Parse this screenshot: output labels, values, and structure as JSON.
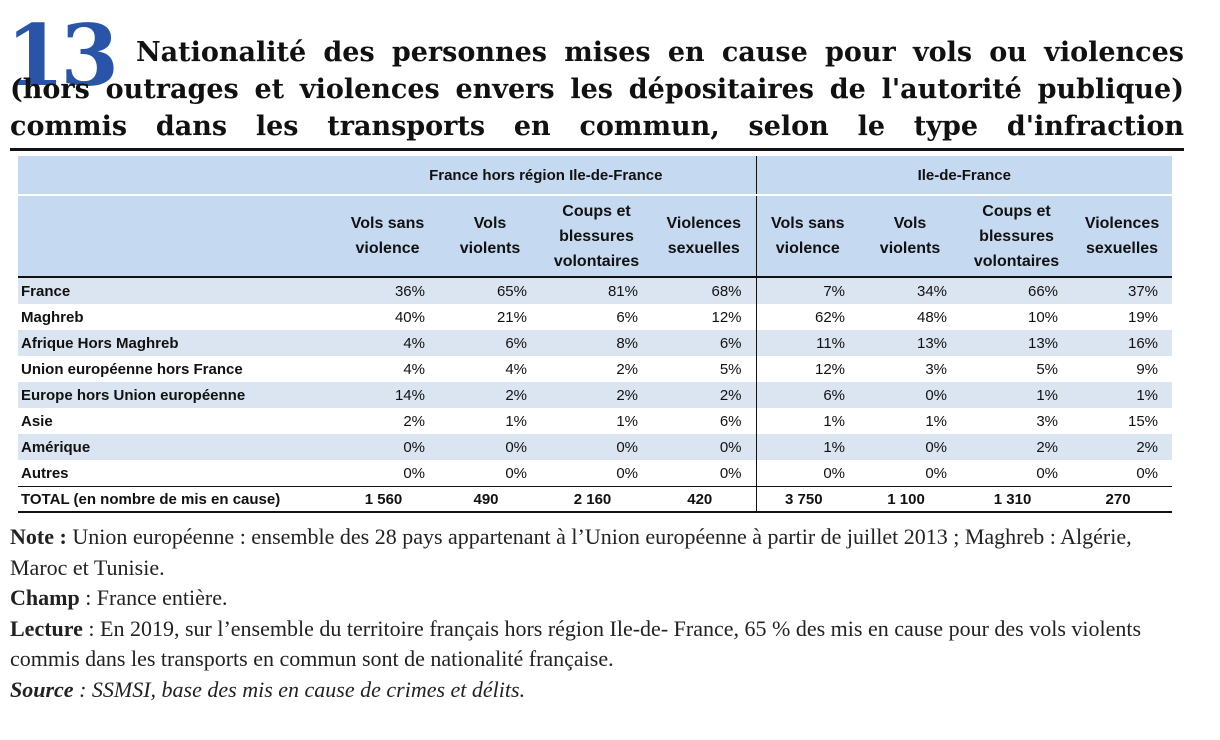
{
  "figure": {
    "number": "13",
    "title": "Nationalité des personnes mises en cause pour vols ou violences (hors outrages et violences envers les dépositaires de l'autorité publique) commis dans les transports en commun, selon le type d'infraction"
  },
  "table": {
    "groups": [
      "France hors région Ile-de-France",
      "Ile-de-France"
    ],
    "columns": [
      "Vols sans violence",
      "Vols violents",
      "Coups et blessures volontaires",
      "Violences sexuelles",
      "Vols sans violence",
      "Vols violents",
      "Coups et blessures volontaires",
      "Violences sexuelles"
    ],
    "rows": [
      {
        "label": "France",
        "values": [
          "36%",
          "65%",
          "81%",
          "68%",
          "7%",
          "34%",
          "66%",
          "37%"
        ]
      },
      {
        "label": "Maghreb",
        "values": [
          "40%",
          "21%",
          "6%",
          "12%",
          "62%",
          "48%",
          "10%",
          "19%"
        ]
      },
      {
        "label": "Afrique Hors Maghreb",
        "values": [
          "4%",
          "6%",
          "8%",
          "6%",
          "11%",
          "13%",
          "13%",
          "16%"
        ]
      },
      {
        "label": "Union européenne hors France",
        "values": [
          "4%",
          "4%",
          "2%",
          "5%",
          "12%",
          "3%",
          "5%",
          "9%"
        ]
      },
      {
        "label": "Europe hors Union européenne",
        "values": [
          "14%",
          "2%",
          "2%",
          "2%",
          "6%",
          "0%",
          "1%",
          "1%"
        ]
      },
      {
        "label": "Asie",
        "values": [
          "2%",
          "1%",
          "1%",
          "6%",
          "1%",
          "1%",
          "3%",
          "15%"
        ]
      },
      {
        "label": "Amérique",
        "values": [
          "0%",
          "0%",
          "0%",
          "0%",
          "1%",
          "0%",
          "2%",
          "2%"
        ]
      },
      {
        "label": "Autres",
        "values": [
          "0%",
          "0%",
          "0%",
          "0%",
          "0%",
          "0%",
          "0%",
          "0%"
        ]
      }
    ],
    "total": {
      "label": "TOTAL (en nombre de mis en cause)",
      "values": [
        "1 560",
        "490",
        "2 160",
        "420",
        "3 750",
        "1 100",
        "1 310",
        "270"
      ]
    }
  },
  "notes": {
    "note_label": "Note :",
    "note_text": " Union européenne : ensemble des 28 pays appartenant à l’Union européenne à partir de juillet 2013 ; Maghreb : Algérie, Maroc et Tunisie.",
    "champ_label": "Champ",
    "champ_text": " : France entière.",
    "lecture_label": "Lecture",
    "lecture_text": " : En 2019, sur l’ensemble du territoire français hors région Ile-de- France, 65 % des mis en cause pour des vols violents commis dans les transports en commun sont de nationalité française.",
    "source_label": "Source",
    "source_text": " : SSMSI, base des mis en cause de crimes et délits."
  },
  "colors": {
    "accent": "#2a54a8",
    "header_bg": "#c5d9f1",
    "band_bg": "#dbe5f1"
  }
}
